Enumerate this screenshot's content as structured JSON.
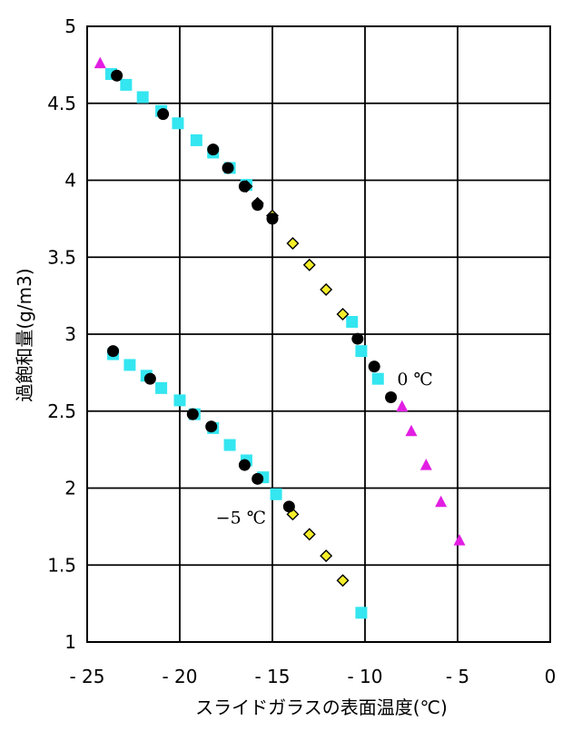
{
  "chart_data": {
    "type": "scatter",
    "title": "",
    "xlabel": "スライドガラスの表面温度(℃)",
    "ylabel": "過飽和量(g/m3)",
    "xlim": [
      -25,
      0
    ],
    "ylim": [
      1,
      5
    ],
    "x_ticks": [
      "- 25",
      "- 20",
      "- 15",
      "- 10",
      "- 5",
      "0"
    ],
    "y_ticks": [
      "1",
      "1.5",
      "2",
      "2.5",
      "3",
      "3.5",
      "4",
      "4.5",
      "5"
    ],
    "grid": true,
    "annotations": [
      {
        "text": "0 ℃",
        "x": -7.3,
        "y": 2.67
      },
      {
        "text": "−5 ℃",
        "x": -16.7,
        "y": 1.77
      }
    ],
    "colors": {
      "square": "#33e6f0",
      "triangle": "#e21ee2",
      "diamond": "#f4ee2a",
      "circle": "#000000"
    },
    "series": [
      {
        "marker": "square",
        "color": "#33e6f0",
        "points": [
          [
            -23.7,
            4.69
          ],
          [
            -22.9,
            4.62
          ],
          [
            -22.0,
            4.54
          ],
          [
            -21.0,
            4.45
          ],
          [
            -20.1,
            4.37
          ],
          [
            -19.1,
            4.26
          ],
          [
            -18.2,
            4.18
          ],
          [
            -17.3,
            4.08
          ],
          [
            -16.4,
            3.97
          ],
          [
            -10.7,
            3.08
          ],
          [
            -10.2,
            2.89
          ],
          [
            -9.3,
            2.71
          ],
          [
            -23.6,
            2.87
          ],
          [
            -22.7,
            2.8
          ],
          [
            -21.8,
            2.73
          ],
          [
            -21.0,
            2.65
          ],
          [
            -20.0,
            2.57
          ],
          [
            -19.2,
            2.48
          ],
          [
            -18.2,
            2.39
          ],
          [
            -17.3,
            2.28
          ],
          [
            -16.4,
            2.18
          ],
          [
            -15.5,
            2.07
          ],
          [
            -14.8,
            1.96
          ],
          [
            -10.2,
            1.19
          ]
        ]
      },
      {
        "marker": "triangle",
        "color": "#e21ee2",
        "points": [
          [
            -24.3,
            4.76
          ],
          [
            -8.0,
            2.53
          ],
          [
            -7.5,
            2.37
          ],
          [
            -6.7,
            2.15
          ],
          [
            -5.9,
            1.91
          ],
          [
            -4.9,
            1.66
          ]
        ]
      },
      {
        "marker": "diamond",
        "color": "#f4ee2a",
        "points": [
          [
            -16.4,
            3.96
          ],
          [
            -15.8,
            3.85
          ],
          [
            -15.0,
            3.77
          ],
          [
            -13.9,
            3.59
          ],
          [
            -13.0,
            3.45
          ],
          [
            -12.1,
            3.29
          ],
          [
            -11.2,
            3.13
          ],
          [
            -13.9,
            1.83
          ],
          [
            -13.0,
            1.7
          ],
          [
            -12.1,
            1.56
          ],
          [
            -11.2,
            1.4
          ]
        ]
      },
      {
        "marker": "circle",
        "color": "#000000",
        "points": [
          [
            -23.4,
            4.68
          ],
          [
            -20.9,
            4.43
          ],
          [
            -18.2,
            4.2
          ],
          [
            -17.4,
            4.08
          ],
          [
            -16.5,
            3.96
          ],
          [
            -15.8,
            3.84
          ],
          [
            -15.0,
            3.75
          ],
          [
            -10.4,
            2.97
          ],
          [
            -9.5,
            2.79
          ],
          [
            -8.6,
            2.59
          ],
          [
            -23.6,
            2.89
          ],
          [
            -21.6,
            2.71
          ],
          [
            -19.3,
            2.48
          ],
          [
            -18.3,
            2.4
          ],
          [
            -16.5,
            2.15
          ],
          [
            -15.8,
            2.06
          ],
          [
            -14.1,
            1.88
          ]
        ]
      }
    ]
  }
}
